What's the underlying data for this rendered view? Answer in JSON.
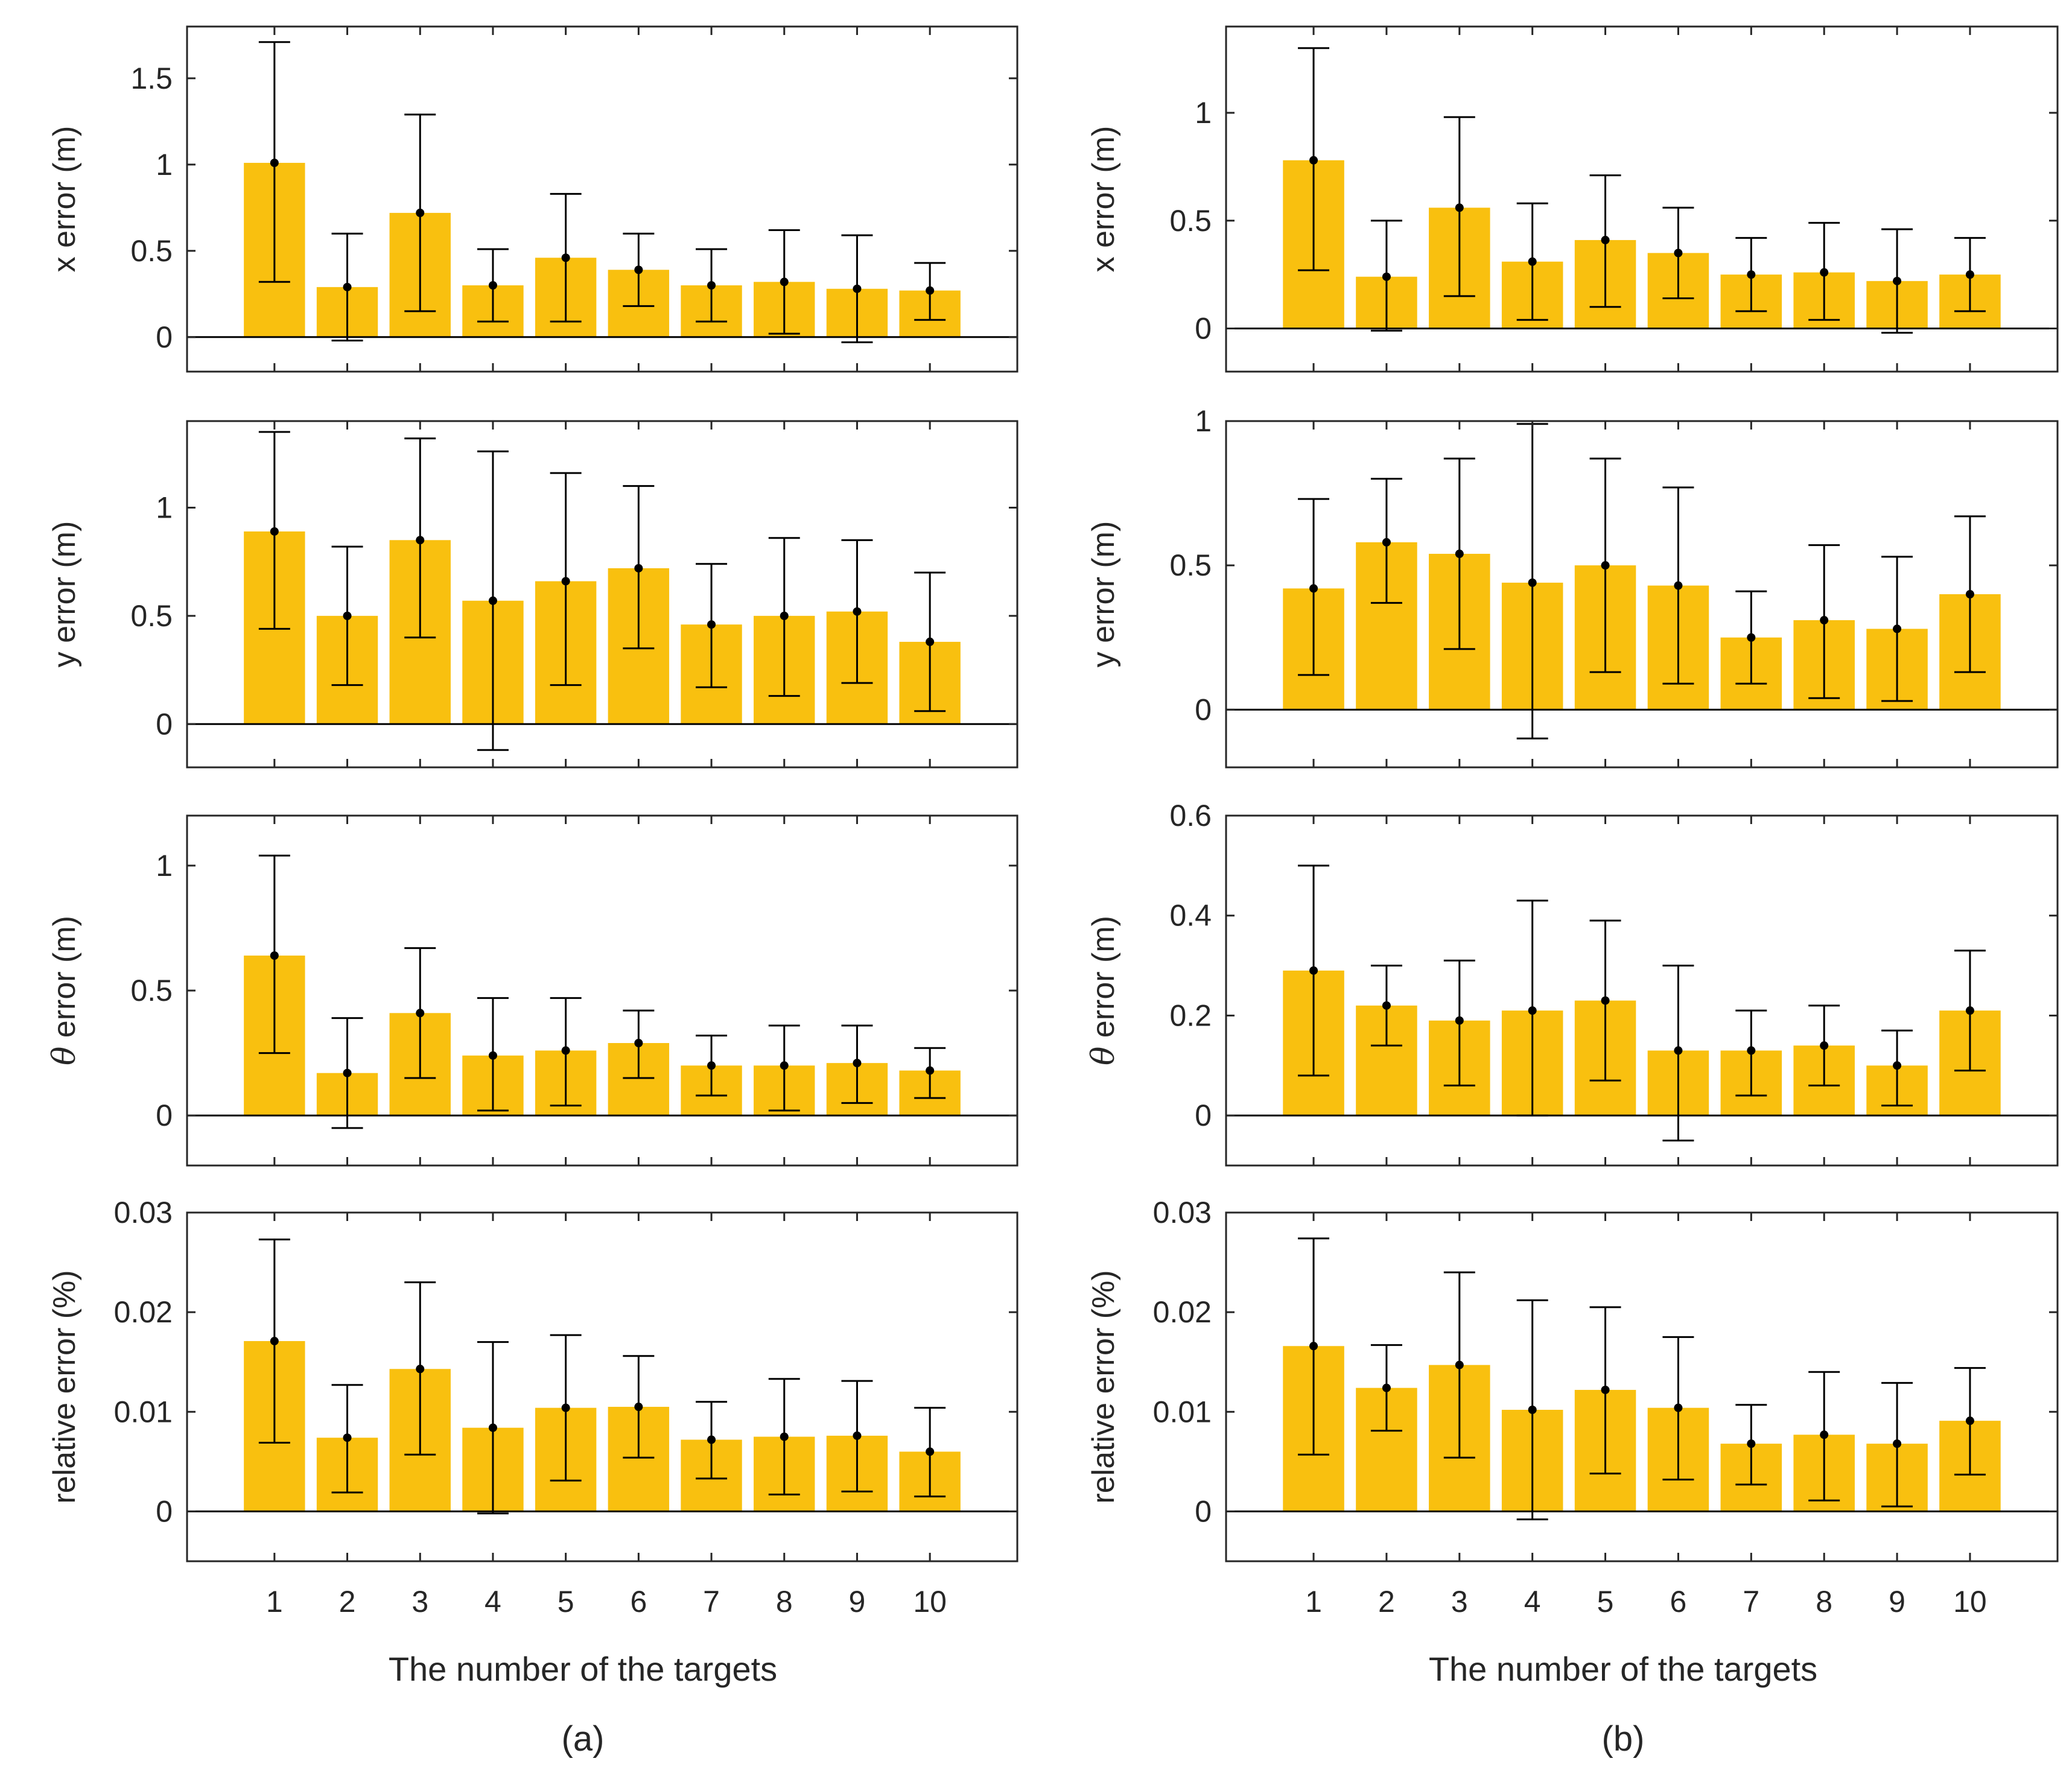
{
  "chart_data": [
    {
      "id": "a-x",
      "type": "bar",
      "panel": "a",
      "ylabel": "x error (m)",
      "ylim": [
        -0.2,
        1.8
      ],
      "yticks": [
        0,
        0.5,
        1,
        1.5
      ],
      "ytick_labels": [
        "0",
        "0.5",
        "1",
        "1.5"
      ],
      "categories": [
        "1",
        "2",
        "3",
        "4",
        "5",
        "6",
        "7",
        "8",
        "9",
        "10"
      ],
      "values": [
        1.01,
        0.29,
        0.72,
        0.3,
        0.46,
        0.39,
        0.3,
        0.32,
        0.28,
        0.27
      ],
      "err_low": [
        0.32,
        -0.02,
        0.15,
        0.09,
        0.09,
        0.18,
        0.09,
        0.02,
        -0.03,
        0.1
      ],
      "err_high": [
        1.71,
        0.6,
        1.29,
        0.51,
        0.83,
        0.6,
        0.51,
        0.62,
        0.59,
        0.43
      ],
      "bar_color": "#F9C00F"
    },
    {
      "id": "a-y",
      "type": "bar",
      "panel": "a",
      "ylabel": "y error (m)",
      "ylim": [
        -0.2,
        1.4
      ],
      "yticks": [
        0,
        0.5,
        1
      ],
      "ytick_labels": [
        "0",
        "0.5",
        "1"
      ],
      "categories": [
        "1",
        "2",
        "3",
        "4",
        "5",
        "6",
        "7",
        "8",
        "9",
        "10"
      ],
      "values": [
        0.89,
        0.5,
        0.85,
        0.57,
        0.66,
        0.72,
        0.46,
        0.5,
        0.52,
        0.38
      ],
      "err_low": [
        0.44,
        0.18,
        0.4,
        -0.12,
        0.18,
        0.35,
        0.17,
        0.13,
        0.19,
        0.06
      ],
      "err_high": [
        1.35,
        0.82,
        1.32,
        1.26,
        1.16,
        1.1,
        0.74,
        0.86,
        0.85,
        0.7
      ],
      "bar_color": "#F9C00F"
    },
    {
      "id": "a-theta",
      "type": "bar",
      "panel": "a",
      "ylabel": "θ error (m)",
      "ylim": [
        -0.2,
        1.2
      ],
      "yticks": [
        0,
        0.5,
        1
      ],
      "ytick_labels": [
        "0",
        "0.5",
        "1"
      ],
      "categories": [
        "1",
        "2",
        "3",
        "4",
        "5",
        "6",
        "7",
        "8",
        "9",
        "10"
      ],
      "values": [
        0.64,
        0.17,
        0.41,
        0.24,
        0.26,
        0.29,
        0.2,
        0.2,
        0.21,
        0.18
      ],
      "err_low": [
        0.25,
        -0.05,
        0.15,
        0.02,
        0.04,
        0.15,
        0.08,
        0.02,
        0.05,
        0.07
      ],
      "err_high": [
        1.04,
        0.39,
        0.67,
        0.47,
        0.47,
        0.42,
        0.32,
        0.36,
        0.36,
        0.27
      ],
      "bar_color": "#F9C00F"
    },
    {
      "id": "a-rel",
      "type": "bar",
      "panel": "a",
      "ylabel": "relative error (%)",
      "ylim": [
        -0.005,
        0.03
      ],
      "yticks": [
        0,
        0.01,
        0.02,
        0.03
      ],
      "ytick_labels": [
        "0",
        "0.01",
        "0.02",
        "0.03"
      ],
      "categories": [
        "1",
        "2",
        "3",
        "4",
        "5",
        "6",
        "7",
        "8",
        "9",
        "10"
      ],
      "values": [
        0.0171,
        0.0074,
        0.0143,
        0.0084,
        0.0104,
        0.0105,
        0.0072,
        0.0075,
        0.0076,
        0.006
      ],
      "err_low": [
        0.0069,
        0.0019,
        0.0057,
        -0.0002,
        0.0031,
        0.0054,
        0.0033,
        0.0017,
        0.002,
        0.0015
      ],
      "err_high": [
        0.0273,
        0.0127,
        0.023,
        0.017,
        0.0177,
        0.0156,
        0.011,
        0.0133,
        0.0131,
        0.0104
      ],
      "bar_color": "#F9C00F"
    },
    {
      "id": "b-x",
      "type": "bar",
      "panel": "b",
      "ylabel": "x error (m)",
      "ylim": [
        -0.2,
        1.4
      ],
      "yticks": [
        0,
        0.5,
        1
      ],
      "ytick_labels": [
        "0",
        "0.5",
        "1"
      ],
      "categories": [
        "1",
        "2",
        "3",
        "4",
        "5",
        "6",
        "7",
        "8",
        "9",
        "10"
      ],
      "values": [
        0.78,
        0.24,
        0.56,
        0.31,
        0.41,
        0.35,
        0.25,
        0.26,
        0.22,
        0.25
      ],
      "err_low": [
        0.27,
        -0.01,
        0.15,
        0.04,
        0.1,
        0.14,
        0.08,
        0.04,
        -0.02,
        0.08
      ],
      "err_high": [
        1.3,
        0.5,
        0.98,
        0.58,
        0.71,
        0.56,
        0.42,
        0.49,
        0.46,
        0.42
      ],
      "bar_color": "#F9C00F"
    },
    {
      "id": "b-y",
      "type": "bar",
      "panel": "b",
      "ylabel": "y error (m)",
      "ylim": [
        -0.2,
        1.0
      ],
      "yticks": [
        0,
        0.5,
        1
      ],
      "ytick_labels": [
        "0",
        "0.5",
        "1"
      ],
      "categories": [
        "1",
        "2",
        "3",
        "4",
        "5",
        "6",
        "7",
        "8",
        "9",
        "10"
      ],
      "values": [
        0.42,
        0.58,
        0.54,
        0.44,
        0.5,
        0.43,
        0.25,
        0.31,
        0.28,
        0.4
      ],
      "err_low": [
        0.12,
        0.37,
        0.21,
        -0.1,
        0.13,
        0.09,
        0.09,
        0.04,
        0.03,
        0.13
      ],
      "err_high": [
        0.73,
        0.8,
        0.87,
        0.99,
        0.87,
        0.77,
        0.41,
        0.57,
        0.53,
        0.67
      ],
      "bar_color": "#F9C00F"
    },
    {
      "id": "b-theta",
      "type": "bar",
      "panel": "b",
      "ylabel": "θ error (m)",
      "ylim": [
        -0.1,
        0.6
      ],
      "yticks": [
        0,
        0.2,
        0.4,
        0.6
      ],
      "ytick_labels": [
        "0",
        "0.2",
        "0.4",
        "0.6"
      ],
      "categories": [
        "1",
        "2",
        "3",
        "4",
        "5",
        "6",
        "7",
        "8",
        "9",
        "10"
      ],
      "values": [
        0.29,
        0.22,
        0.19,
        0.21,
        0.23,
        0.13,
        0.13,
        0.14,
        0.1,
        0.21
      ],
      "err_low": [
        0.08,
        0.14,
        0.06,
        0.0,
        0.07,
        -0.05,
        0.04,
        0.06,
        0.02,
        0.09
      ],
      "err_high": [
        0.5,
        0.3,
        0.31,
        0.43,
        0.39,
        0.3,
        0.21,
        0.22,
        0.17,
        0.33
      ],
      "bar_color": "#F9C00F"
    },
    {
      "id": "b-rel",
      "type": "bar",
      "panel": "b",
      "ylabel": "relative error (%)",
      "ylim": [
        -0.005,
        0.03
      ],
      "yticks": [
        0,
        0.01,
        0.02,
        0.03
      ],
      "ytick_labels": [
        "0",
        "0.01",
        "0.02",
        "0.03"
      ],
      "categories": [
        "1",
        "2",
        "3",
        "4",
        "5",
        "6",
        "7",
        "8",
        "9",
        "10"
      ],
      "values": [
        0.0166,
        0.0124,
        0.0147,
        0.0102,
        0.0122,
        0.0104,
        0.0068,
        0.0077,
        0.0068,
        0.0091
      ],
      "err_low": [
        0.0057,
        0.0081,
        0.0054,
        -0.0008,
        0.0038,
        0.0032,
        0.0027,
        0.0011,
        0.0005,
        0.0037
      ],
      "err_high": [
        0.0274,
        0.0167,
        0.024,
        0.0212,
        0.0205,
        0.0175,
        0.0107,
        0.014,
        0.0129,
        0.0144
      ],
      "bar_color": "#F9C00F"
    }
  ],
  "xlabel_a": "The number of the targets",
  "xlabel_b": "The number of the targets",
  "caption_a": "(a)",
  "caption_b": "(b)",
  "colors": {
    "bar": "#F9C00F",
    "axis": "#262626",
    "zero_line": "#000000",
    "error_bar": "#000000"
  }
}
